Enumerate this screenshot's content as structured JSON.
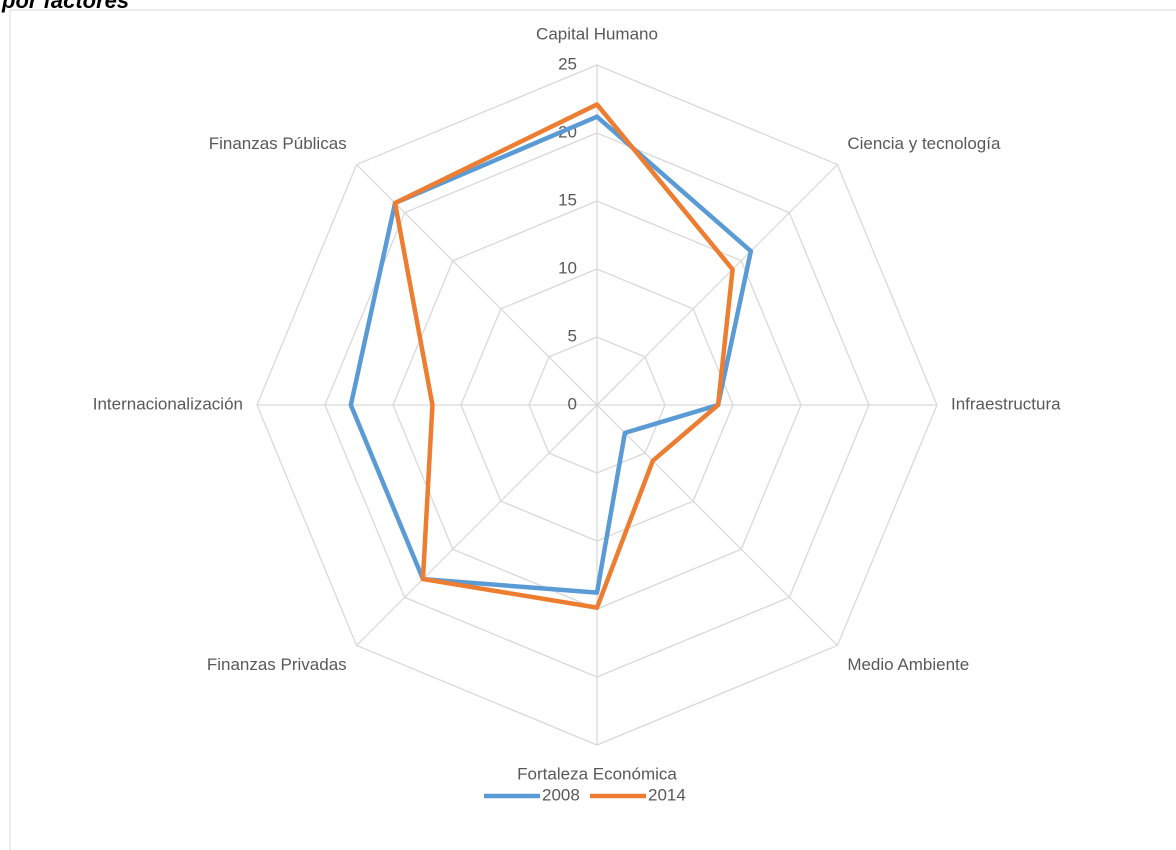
{
  "chart_data": {
    "type": "radar",
    "title": "por factores",
    "categories": [
      "Capital Humano",
      "Ciencia y tecnología",
      "Infraestructura",
      "Medio Ambiente",
      "Fortaleza Económica",
      "Finanzas Privadas",
      "Internacionalización",
      "Finanzas Públicas"
    ],
    "series": [
      {
        "name": "2008",
        "color": "#5b9bd5",
        "values": [
          21.2,
          16.0,
          8.9,
          2.9,
          13.8,
          18.1,
          18.1,
          21.0
        ]
      },
      {
        "name": "2014",
        "color": "#ed7d31",
        "values": [
          22.1,
          14.1,
          8.9,
          5.8,
          14.9,
          18.1,
          12.1,
          21.0
        ]
      }
    ],
    "ylim": [
      0,
      25
    ],
    "yticks": [
      0,
      5,
      10,
      15,
      20,
      25
    ],
    "grid": true,
    "legend": "bottom"
  }
}
